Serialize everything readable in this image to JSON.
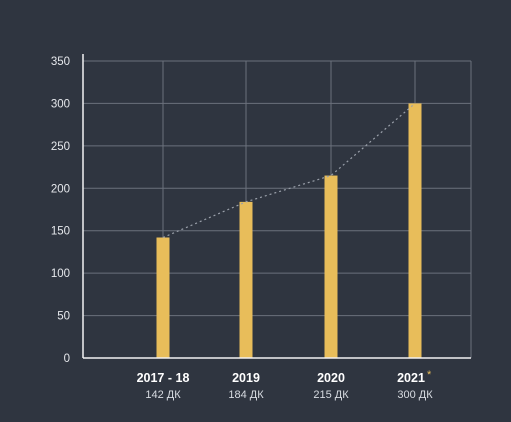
{
  "colors": {
    "background": "#2f3540",
    "bar": "#e8bd5a",
    "grid": "#6b717c",
    "axis": "#f2f2f2",
    "trend_line": "#9aa0aa"
  },
  "chart_data": {
    "type": "bar",
    "categories": [
      "2017 - 18",
      "2019",
      "2020",
      "2021"
    ],
    "category_marks": [
      "",
      "",
      "",
      "*"
    ],
    "sublabels": [
      "142 ДК",
      "184 ДК",
      "215 ДК",
      "300 ДК"
    ],
    "values": [
      142,
      184,
      215,
      300
    ],
    "ylim": [
      0,
      350
    ],
    "yticks": [
      "0",
      "50",
      "100",
      "150",
      "200",
      "250",
      "300",
      "350"
    ],
    "grid": true,
    "trend_line": true,
    "title": "",
    "xlabel": "",
    "ylabel": ""
  }
}
